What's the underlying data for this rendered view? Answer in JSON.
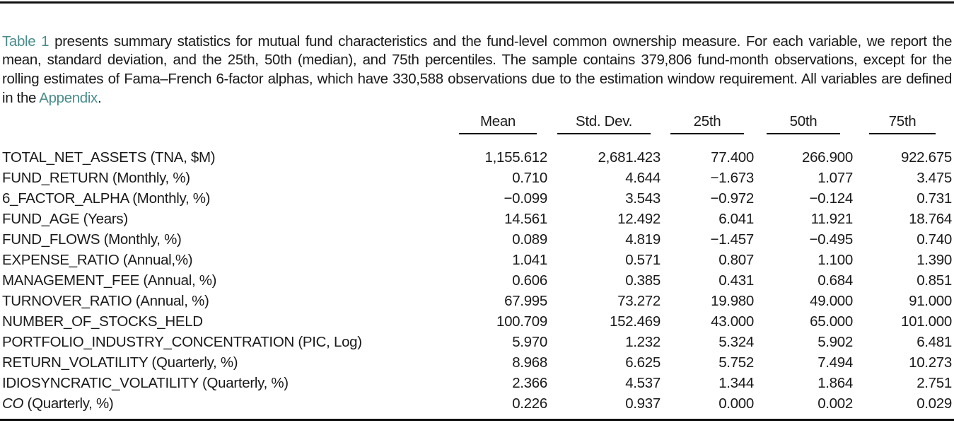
{
  "intro": {
    "link_table": "Table 1",
    "text_main": " presents summary statistics for mutual fund characteristics and the fund-level common ownership measure. For each variable, we report the mean, standard deviation, and the 25th, 50th (median), and 75th percentiles. The sample contains 379,806 fund-month observations, except for the rolling estimates of Fama–French 6-factor alphas, which have 330,588 observations due to the estimation window requirement. All variables are defined in the ",
    "link_appendix": "Appendix",
    "text_end": "."
  },
  "table": {
    "headers": [
      "Mean",
      "Std. Dev.",
      "25th",
      "50th",
      "75th"
    ],
    "rows": [
      {
        "label": "TOTAL_NET_ASSETS (TNA, $M)",
        "mean": "1,155.612",
        "std": "2,681.423",
        "p25": "77.400",
        "p50": "266.900",
        "p75": "922.675"
      },
      {
        "label": "FUND_RETURN (Monthly, %)",
        "mean": "0.710",
        "std": "4.644",
        "p25": "−1.673",
        "p50": "1.077",
        "p75": "3.475"
      },
      {
        "label": "6_FACTOR_ALPHA (Monthly, %)",
        "mean": "−0.099",
        "std": "3.543",
        "p25": "−0.972",
        "p50": "−0.124",
        "p75": "0.731"
      },
      {
        "label": "FUND_AGE (Years)",
        "mean": "14.561",
        "std": "12.492",
        "p25": "6.041",
        "p50": "11.921",
        "p75": "18.764"
      },
      {
        "label": "FUND_FLOWS (Monthly, %)",
        "mean": "0.089",
        "std": "4.819",
        "p25": "−1.457",
        "p50": "−0.495",
        "p75": "0.740"
      },
      {
        "label": "EXPENSE_RATIO (Annual,%)",
        "mean": "1.041",
        "std": "0.571",
        "p25": "0.807",
        "p50": "1.100",
        "p75": "1.390"
      },
      {
        "label": "MANAGEMENT_FEE (Annual, %)",
        "mean": "0.606",
        "std": "0.385",
        "p25": "0.431",
        "p50": "0.684",
        "p75": "0.851"
      },
      {
        "label": "TURNOVER_RATIO (Annual, %)",
        "mean": "67.995",
        "std": "73.272",
        "p25": "19.980",
        "p50": "49.000",
        "p75": "91.000"
      },
      {
        "label": "NUMBER_OF_STOCKS_HELD",
        "mean": "100.709",
        "std": "152.469",
        "p25": "43.000",
        "p50": "65.000",
        "p75": "101.000"
      },
      {
        "label": "PORTFOLIO_INDUSTRY_CONCENTRATION (PIC, Log)",
        "mean": "5.970",
        "std": "1.232",
        "p25": "5.324",
        "p50": "5.902",
        "p75": "6.481"
      },
      {
        "label": "RETURN_VOLATILITY (Quarterly, %)",
        "mean": "8.968",
        "std": "6.625",
        "p25": "5.752",
        "p50": "7.494",
        "p75": "10.273"
      },
      {
        "label": "IDIOSYNCRATIC_VOLATILITY (Quarterly, %)",
        "mean": "2.366",
        "std": "4.537",
        "p25": "1.344",
        "p50": "1.864",
        "p75": "2.751"
      },
      {
        "label_italic": "CO",
        "label": " (Quarterly, %)",
        "mean": "0.226",
        "std": "0.937",
        "p25": "0.000",
        "p50": "0.002",
        "p75": "0.029"
      }
    ]
  },
  "colors": {
    "link": "#4a8c8a",
    "text": "#1a1a1a",
    "rule": "#111111"
  }
}
